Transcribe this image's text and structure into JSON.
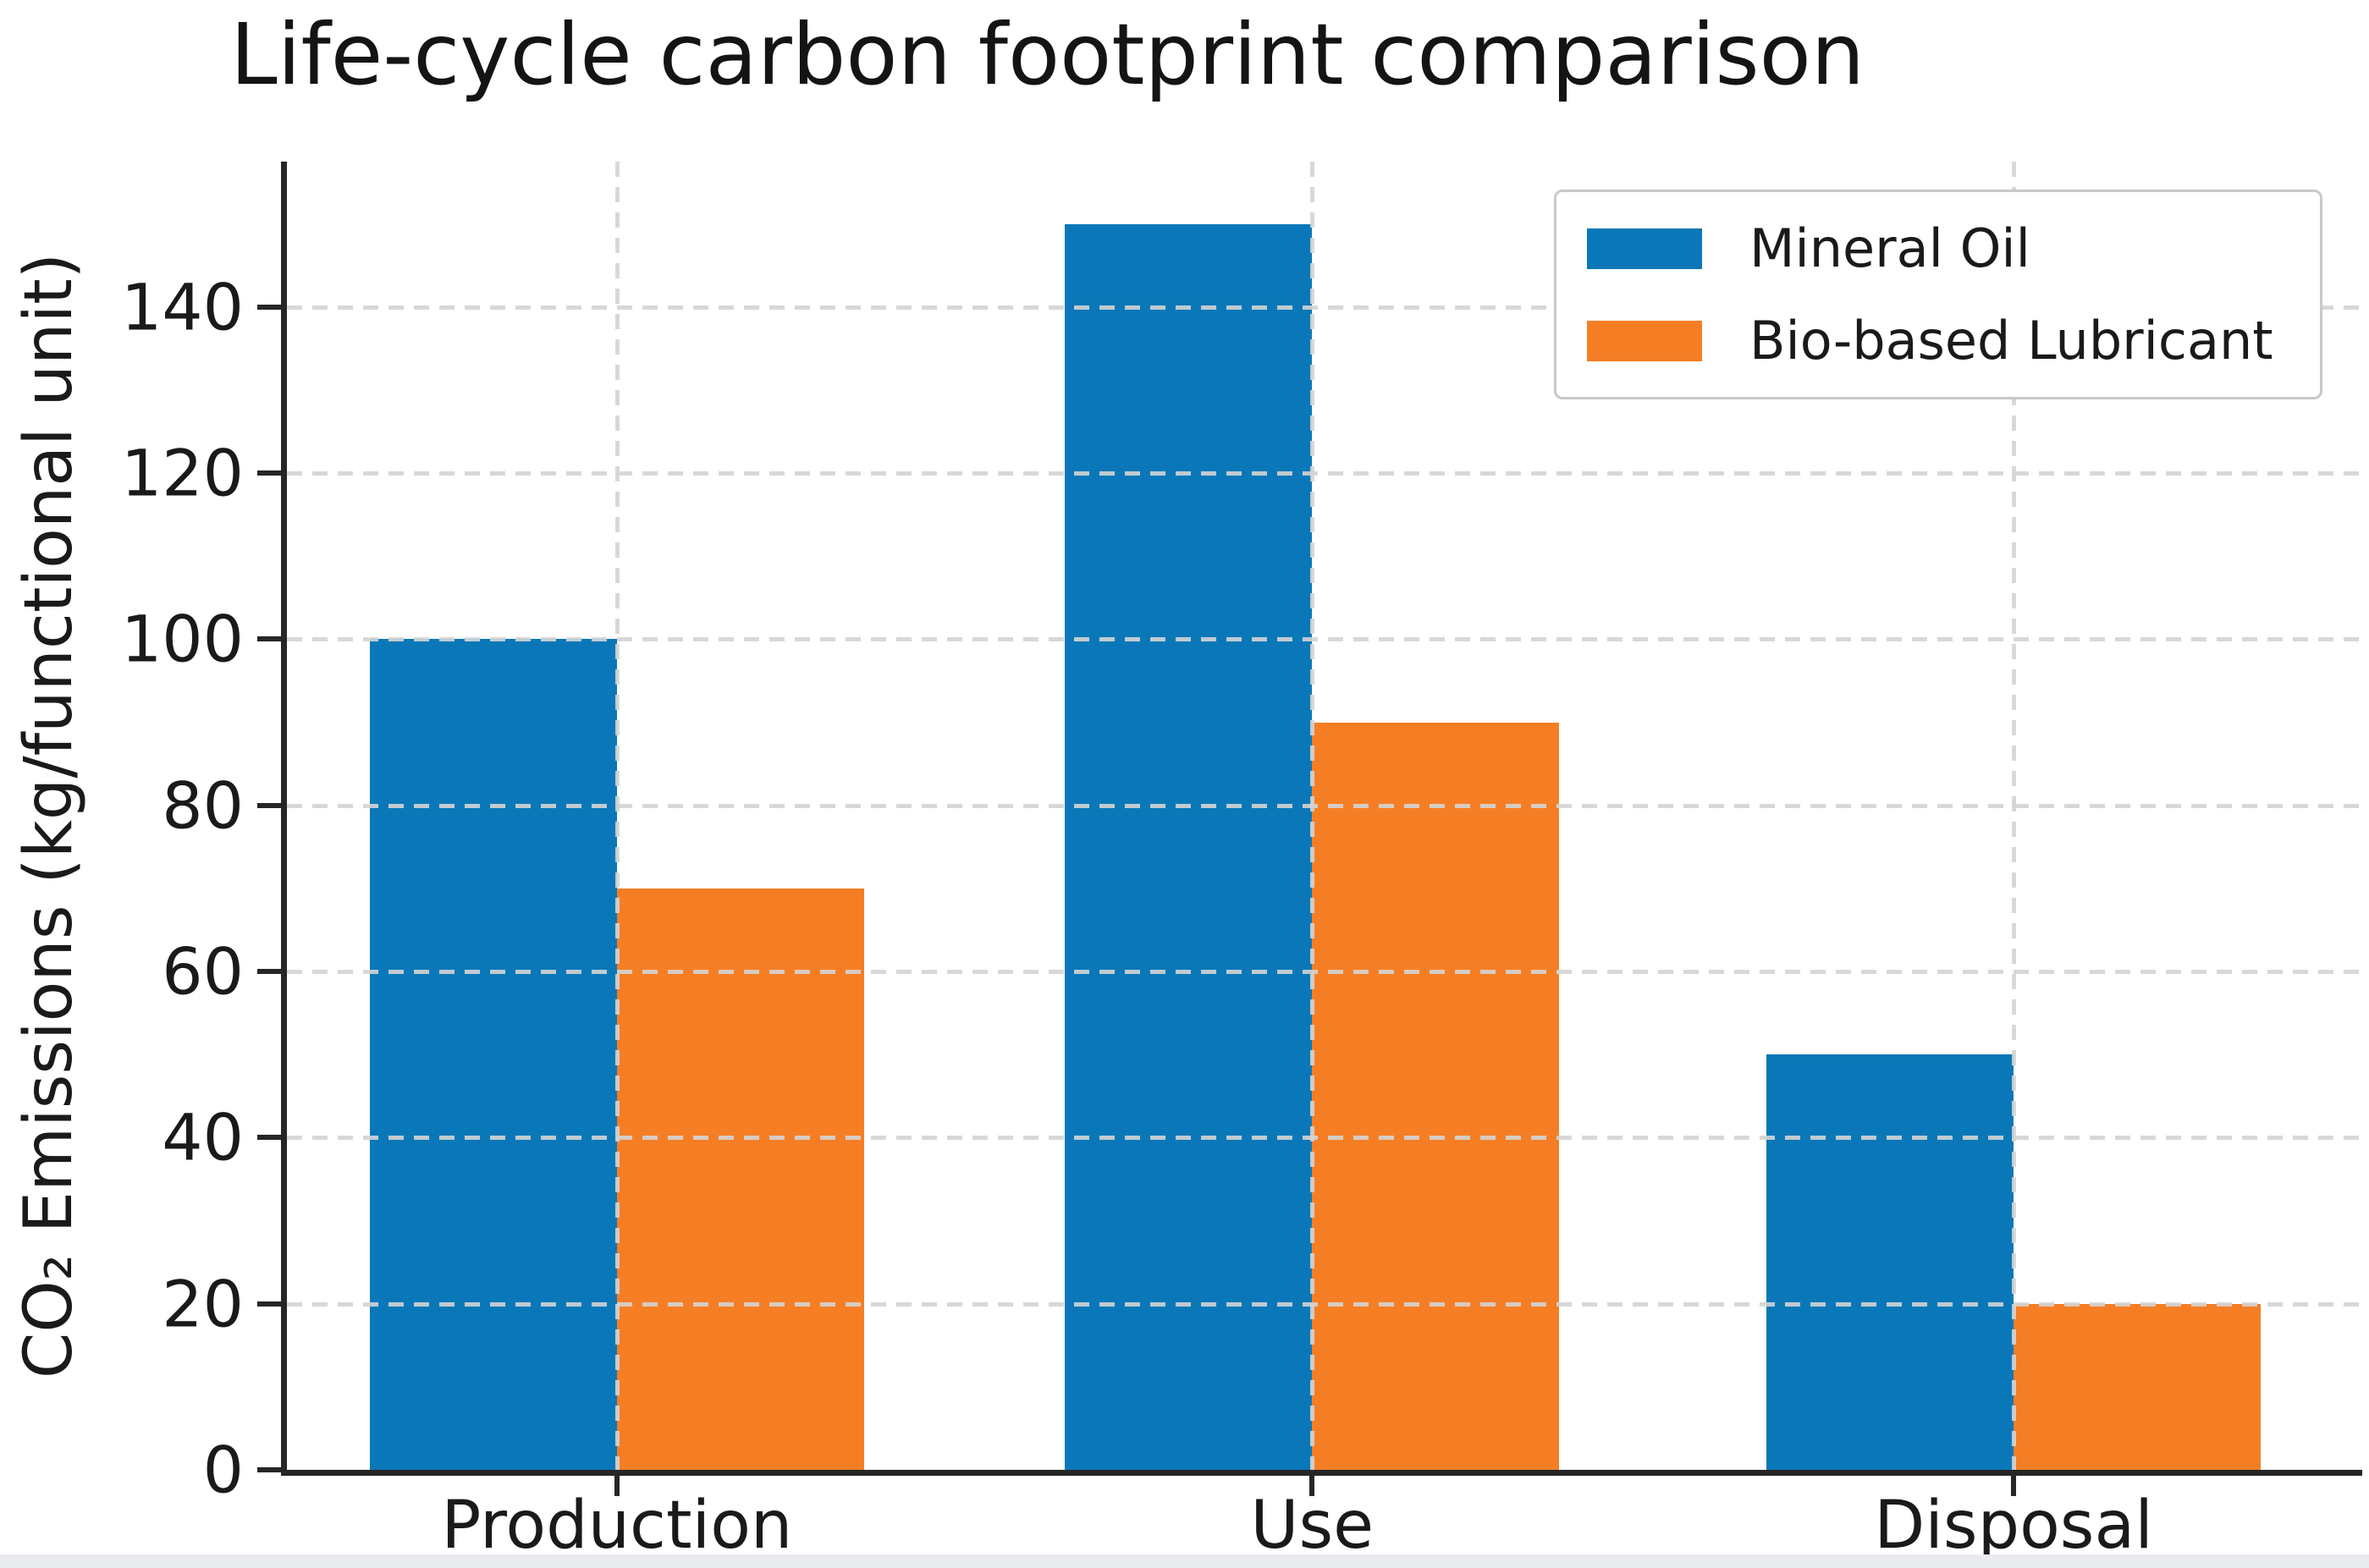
{
  "title": "Life-cycle carbon footprint comparison",
  "chart_data": {
    "type": "bar",
    "categories": [
      "Production",
      "Use",
      "Disposal"
    ],
    "series": [
      {
        "name": "Mineral Oil",
        "color": "#0a78b8",
        "values": [
          100,
          150,
          50
        ]
      },
      {
        "name": "Bio-based Lubricant",
        "color": "#f57e25",
        "values": [
          70,
          90,
          20
        ]
      }
    ],
    "title": "Life-cycle carbon footprint comparison",
    "xlabel": "",
    "ylabel": "CO₂ Emissions (kg/functional unit)",
    "yticks": [
      0,
      20,
      40,
      60,
      80,
      100,
      120,
      140
    ],
    "ylim": [
      0,
      157.5
    ],
    "grid": "dashed, horizontal and vertical",
    "legend_position": "upper right"
  },
  "colors": {
    "spine": "#262626",
    "tick_label": "#1a1a1a",
    "grid": "#d4d4d4",
    "background": "#ffffff",
    "bottom_strip": "#e9ebee",
    "legend_border": "#c9c9c9"
  }
}
